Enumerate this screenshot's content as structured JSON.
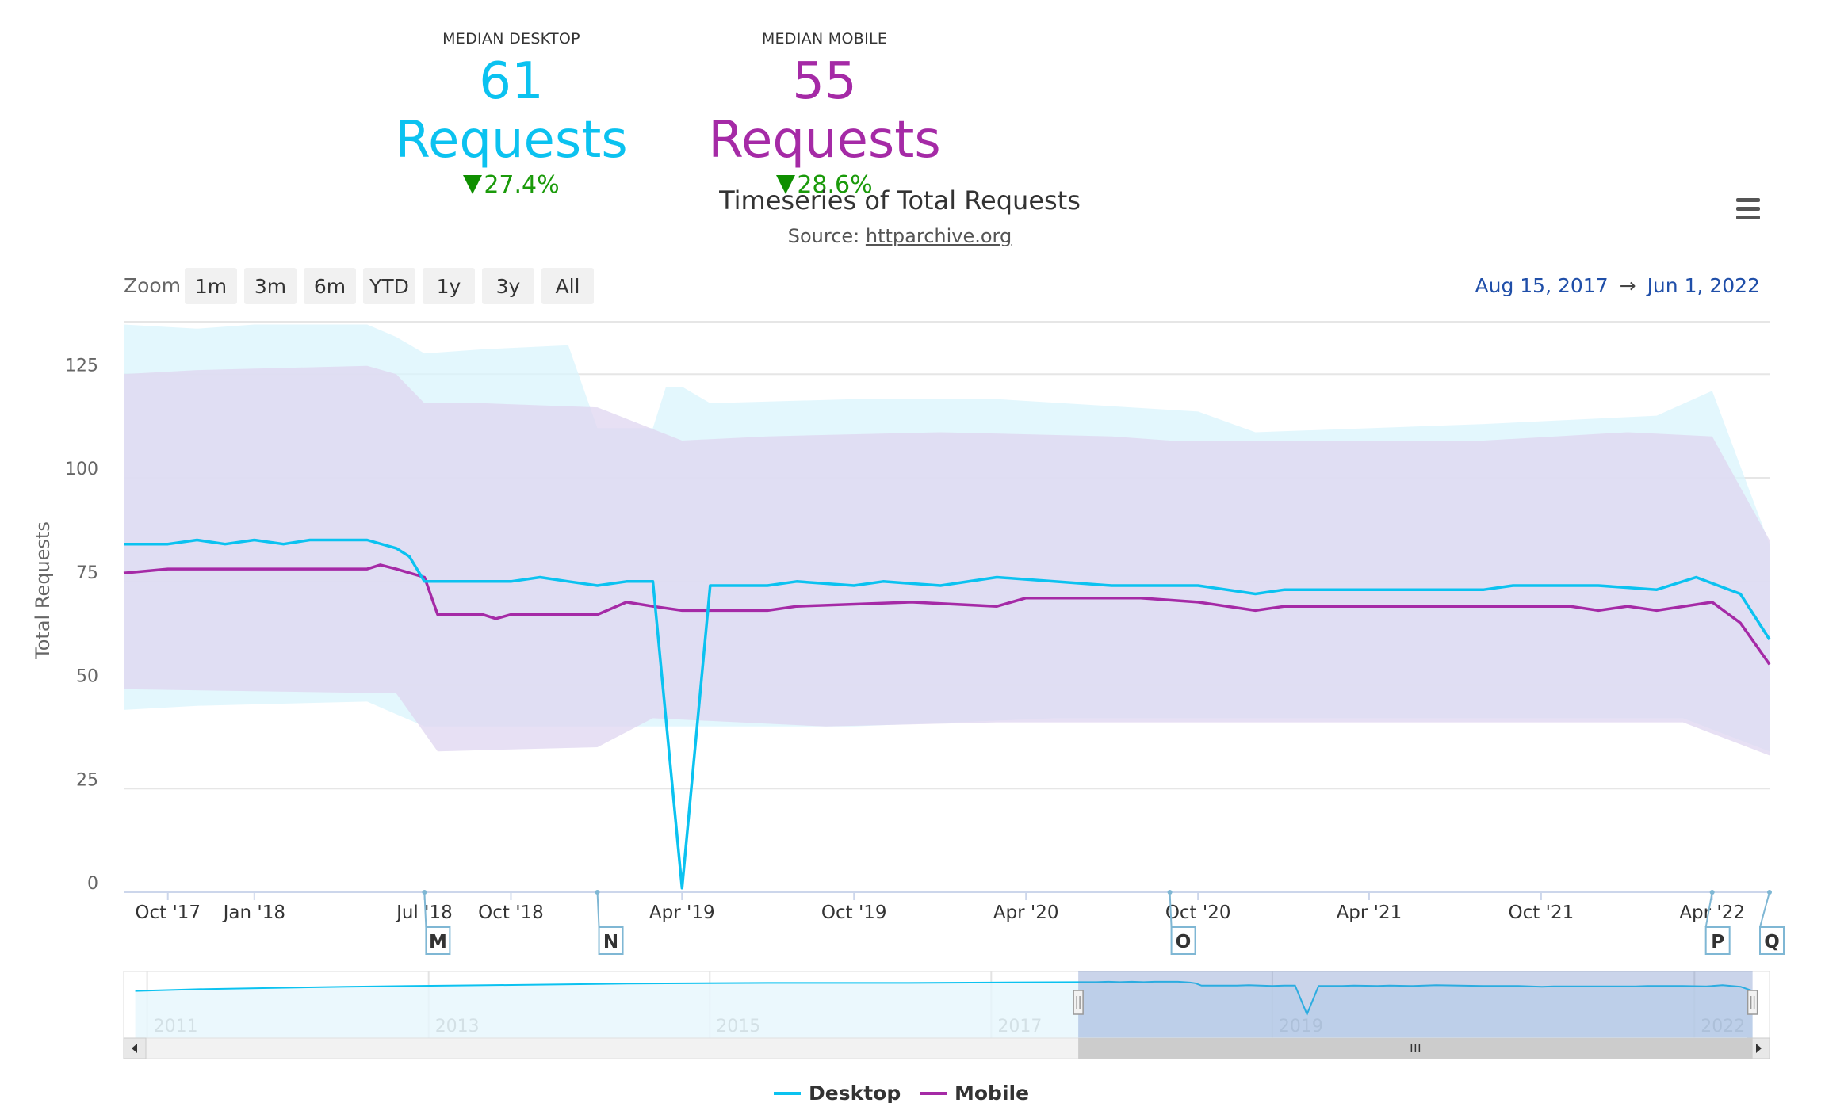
{
  "summary": {
    "desktop": {
      "label": "MEDIAN DESKTOP",
      "value": "61 Requests",
      "change": "27.4%",
      "color": "#0bc2f0"
    },
    "mobile": {
      "label": "MEDIAN MOBILE",
      "value": "55 Requests",
      "change": "28.6%",
      "color": "#a52aa6"
    }
  },
  "chart_header": {
    "title": "Timeseries of Total Requests",
    "source_prefix": "Source: ",
    "source_link": "httparchive.org",
    "menu_icon": "hamburger-menu-icon"
  },
  "range_selector": {
    "zoom_label": "Zoom",
    "buttons": [
      "1m",
      "3m",
      "6m",
      "YTD",
      "1y",
      "3y",
      "All"
    ],
    "from": "Aug 15, 2017",
    "arrow": "→",
    "to": "Jun 1, 2022"
  },
  "chart_data": {
    "type": "line",
    "ylabel": "Total Requests",
    "ylim": [
      0,
      135
    ],
    "yticks": [
      0,
      25,
      50,
      75,
      100,
      125
    ],
    "xlim": [
      "2017-08-15",
      "2022-06-01"
    ],
    "xticks": [
      {
        "label": "Oct '17",
        "date": "2017-10-01"
      },
      {
        "label": "Jan '18",
        "date": "2018-01-01"
      },
      {
        "label": "Jul '18",
        "date": "2018-07-01"
      },
      {
        "label": "Oct '18",
        "date": "2018-10-01"
      },
      {
        "label": "Apr '19",
        "date": "2019-04-01"
      },
      {
        "label": "Oct '19",
        "date": "2019-10-01"
      },
      {
        "label": "Apr '20",
        "date": "2020-04-01"
      },
      {
        "label": "Oct '20",
        "date": "2020-10-01"
      },
      {
        "label": "Apr '21",
        "date": "2021-04-01"
      },
      {
        "label": "Oct '21",
        "date": "2021-10-01"
      },
      {
        "label": "Apr '22",
        "date": "2022-04-01"
      }
    ],
    "grid": true,
    "legend_position": "bottom-center",
    "series": [
      {
        "name": "Desktop",
        "color": "#0bc2f0",
        "band_color": "#d9f4fc",
        "median": [
          [
            "2017-08-15",
            84
          ],
          [
            "2017-10-01",
            84
          ],
          [
            "2017-11-01",
            85
          ],
          [
            "2017-12-01",
            84
          ],
          [
            "2018-01-01",
            85
          ],
          [
            "2018-02-01",
            84
          ],
          [
            "2018-03-01",
            85
          ],
          [
            "2018-04-01",
            85
          ],
          [
            "2018-05-01",
            85
          ],
          [
            "2018-06-01",
            83
          ],
          [
            "2018-06-15",
            81
          ],
          [
            "2018-07-01",
            75
          ],
          [
            "2018-08-01",
            75
          ],
          [
            "2018-10-01",
            75
          ],
          [
            "2018-11-01",
            76
          ],
          [
            "2018-12-01",
            75
          ],
          [
            "2019-01-01",
            74
          ],
          [
            "2019-02-01",
            75
          ],
          [
            "2019-03-01",
            75
          ],
          [
            "2019-04-01",
            1
          ],
          [
            "2019-05-01",
            74
          ],
          [
            "2019-07-01",
            74
          ],
          [
            "2019-08-01",
            75
          ],
          [
            "2019-10-01",
            74
          ],
          [
            "2019-11-01",
            75
          ],
          [
            "2020-01-01",
            74
          ],
          [
            "2020-03-01",
            76
          ],
          [
            "2020-05-01",
            75
          ],
          [
            "2020-07-01",
            74
          ],
          [
            "2020-10-01",
            74
          ],
          [
            "2020-12-01",
            72
          ],
          [
            "2021-01-01",
            73
          ],
          [
            "2021-08-01",
            73
          ],
          [
            "2021-09-01",
            74
          ],
          [
            "2021-12-01",
            74
          ],
          [
            "2022-02-01",
            73
          ],
          [
            "2022-03-15",
            76
          ],
          [
            "2022-05-01",
            72
          ],
          [
            "2022-06-01",
            61
          ]
        ],
        "band_upper": [
          [
            "2017-08-15",
            137
          ],
          [
            "2017-11-01",
            136
          ],
          [
            "2018-01-01",
            137
          ],
          [
            "2018-05-01",
            137
          ],
          [
            "2018-06-01",
            134
          ],
          [
            "2018-07-01",
            130
          ],
          [
            "2018-09-01",
            131
          ],
          [
            "2018-12-01",
            132
          ],
          [
            "2019-01-01",
            112
          ],
          [
            "2019-03-01",
            112
          ],
          [
            "2019-03-15",
            122
          ],
          [
            "2019-04-01",
            122
          ],
          [
            "2019-05-01",
            118
          ],
          [
            "2019-10-01",
            119
          ],
          [
            "2020-03-01",
            119
          ],
          [
            "2020-10-01",
            116
          ],
          [
            "2020-12-01",
            111
          ],
          [
            "2021-08-01",
            113
          ],
          [
            "2022-02-01",
            115
          ],
          [
            "2022-04-01",
            121
          ],
          [
            "2022-06-01",
            84
          ]
        ],
        "band_lower": [
          [
            "2017-08-15",
            44
          ],
          [
            "2017-11-01",
            45
          ],
          [
            "2018-05-01",
            46
          ],
          [
            "2018-07-01",
            40
          ],
          [
            "2019-10-01",
            40
          ],
          [
            "2020-05-01",
            42
          ],
          [
            "2022-03-01",
            42
          ],
          [
            "2022-06-01",
            34
          ]
        ]
      },
      {
        "name": "Mobile",
        "color": "#a52aa6",
        "band_color": "#f2def2",
        "median": [
          [
            "2017-08-15",
            77
          ],
          [
            "2017-10-01",
            78
          ],
          [
            "2018-05-01",
            78
          ],
          [
            "2018-05-15",
            79
          ],
          [
            "2018-06-01",
            78
          ],
          [
            "2018-07-01",
            76
          ],
          [
            "2018-07-15",
            67
          ],
          [
            "2018-09-01",
            67
          ],
          [
            "2018-09-15",
            66
          ],
          [
            "2018-10-01",
            67
          ],
          [
            "2019-01-01",
            67
          ],
          [
            "2019-02-01",
            70
          ],
          [
            "2019-03-01",
            69
          ],
          [
            "2019-04-01",
            68
          ],
          [
            "2019-07-01",
            68
          ],
          [
            "2019-08-01",
            69
          ],
          [
            "2019-12-01",
            70
          ],
          [
            "2020-03-01",
            69
          ],
          [
            "2020-04-01",
            71
          ],
          [
            "2020-06-01",
            71
          ],
          [
            "2020-08-01",
            71
          ],
          [
            "2020-10-01",
            70
          ],
          [
            "2020-12-01",
            68
          ],
          [
            "2021-01-01",
            69
          ],
          [
            "2021-11-01",
            69
          ],
          [
            "2021-12-01",
            68
          ],
          [
            "2022-01-01",
            69
          ],
          [
            "2022-02-01",
            68
          ],
          [
            "2022-04-01",
            70
          ],
          [
            "2022-05-01",
            65
          ],
          [
            "2022-06-01",
            55
          ]
        ],
        "band_upper": [
          [
            "2017-08-15",
            125
          ],
          [
            "2017-11-01",
            126
          ],
          [
            "2018-05-01",
            127
          ],
          [
            "2018-06-01",
            125
          ],
          [
            "2018-07-01",
            118
          ],
          [
            "2018-09-01",
            118
          ],
          [
            "2019-01-01",
            117
          ],
          [
            "2019-04-01",
            109
          ],
          [
            "2019-07-01",
            110
          ],
          [
            "2020-01-01",
            111
          ],
          [
            "2020-07-01",
            110
          ],
          [
            "2020-09-01",
            109
          ],
          [
            "2021-08-01",
            109
          ],
          [
            "2022-01-01",
            111
          ],
          [
            "2022-04-01",
            110
          ],
          [
            "2022-06-01",
            85
          ]
        ],
        "band_lower": [
          [
            "2017-08-15",
            49
          ],
          [
            "2018-06-01",
            48
          ],
          [
            "2018-07-15",
            34
          ],
          [
            "2019-01-01",
            35
          ],
          [
            "2019-03-01",
            42
          ],
          [
            "2019-09-01",
            40
          ],
          [
            "2020-03-01",
            41
          ],
          [
            "2021-01-01",
            41
          ],
          [
            "2022-03-01",
            41
          ],
          [
            "2022-06-01",
            33
          ]
        ]
      }
    ],
    "flags": [
      {
        "label": "M",
        "date": "2018-07-01"
      },
      {
        "label": "N",
        "date": "2019-01-01"
      },
      {
        "label": "O",
        "date": "2020-09-01"
      },
      {
        "label": "P",
        "date": "2022-04-01"
      },
      {
        "label": "Q",
        "date": "2022-06-01"
      }
    ],
    "navigator": {
      "xlim": [
        "2010-11-01",
        "2022-07-15"
      ],
      "ticks": [
        {
          "label": "2011",
          "date": "2011-01-01"
        },
        {
          "label": "2013",
          "date": "2013-01-01"
        },
        {
          "label": "2015",
          "date": "2015-01-01"
        },
        {
          "label": "2017",
          "date": "2017-01-01"
        },
        {
          "label": "2019",
          "date": "2019-01-01"
        },
        {
          "label": "2022",
          "date": "2022-01-01"
        }
      ],
      "selected": [
        "2017-08-15",
        "2022-06-01"
      ]
    }
  }
}
